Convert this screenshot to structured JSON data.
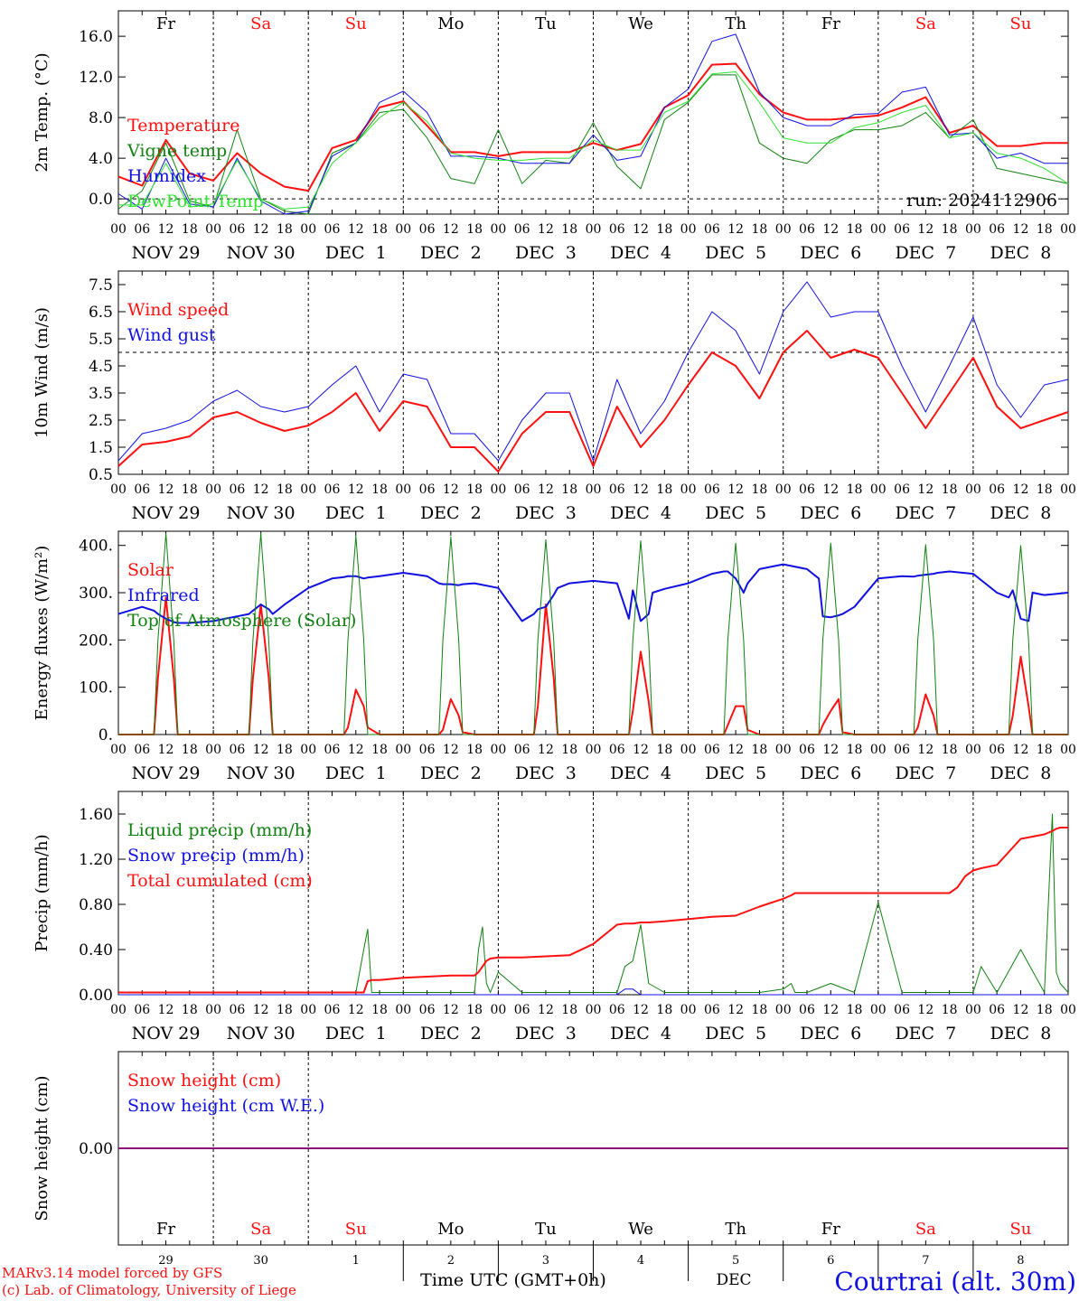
{
  "colors": {
    "red": "#ff1010",
    "blue": "#1010e0",
    "green": "#108010",
    "lightgreen": "#30e030",
    "black": "#000000"
  },
  "day_names": [
    "Fr",
    "Sa",
    "Su",
    "Mo",
    "Tu",
    "We",
    "Th",
    "Fr",
    "Sa",
    "Su"
  ],
  "weekend_flags": [
    false,
    true,
    true,
    false,
    false,
    false,
    false,
    false,
    true,
    true
  ],
  "hour_ticks": [
    "00",
    "06",
    "12",
    "18"
  ],
  "final_hour_tick": "00",
  "date_labels": [
    "NOV 29",
    "NOV 30",
    "DEC  1",
    "DEC  2",
    "DEC  3",
    "DEC  4",
    "DEC  5",
    "DEC  6",
    "DEC  7",
    "DEC  8"
  ],
  "bottom_day_numbers": [
    "29",
    "30",
    "1",
    "2",
    "3",
    "4",
    "5",
    "6",
    "7",
    "8"
  ],
  "bottom_month": "DEC",
  "x_axis_title": "Time UTC (GMT+0h)",
  "credits": [
    "MARv3.14 model forced by GFS",
    "(c) Lab. of Climatology, University of Liege"
  ],
  "location": "Courtrai (alt. 30m)",
  "run_label": "run: 2024112906",
  "chart_data": [
    {
      "type": "line",
      "ylabel": "2m Temp. (°C)",
      "ylim": [
        -1.5,
        18.5
      ],
      "yticks": [
        0.0,
        4.0,
        8.0,
        12.0,
        16.0
      ],
      "ytick_labels": [
        "0.0",
        "4.0",
        "8.0",
        "12.0",
        "16.0"
      ],
      "ref_line": 0,
      "x_hours": [
        0,
        6,
        12,
        18,
        24,
        30,
        36,
        42,
        48,
        54,
        60,
        66,
        72,
        78,
        84,
        90,
        96,
        102,
        108,
        114,
        120,
        126,
        132,
        138,
        144,
        150,
        156,
        162,
        168,
        174,
        180,
        186,
        192,
        198,
        204,
        210,
        216,
        222,
        228,
        234,
        240
      ],
      "series": [
        {
          "name": "Temperature",
          "color": "red",
          "width": 2,
          "values": [
            2.2,
            1.3,
            5.8,
            2.5,
            1.8,
            4.5,
            2.5,
            1.2,
            0.8,
            5.0,
            5.8,
            9.0,
            9.6,
            7.2,
            4.6,
            4.6,
            4.2,
            4.6,
            4.6,
            4.6,
            5.5,
            4.8,
            5.4,
            9.0,
            10.2,
            13.2,
            13.3,
            10.3,
            8.5,
            7.8,
            7.8,
            8.0,
            8.2,
            9.0,
            10.0,
            6.5,
            7.2,
            5.2,
            5.2,
            5.5,
            5.5
          ]
        },
        {
          "name": "Vigne temp",
          "color": "green",
          "width": 1,
          "values": [
            -1.0,
            0.8,
            5.5,
            -0.2,
            -0.8,
            6.8,
            0.0,
            -1.2,
            -1.5,
            4.5,
            5.5,
            8.5,
            8.8,
            6.0,
            2.0,
            1.5,
            6.8,
            1.5,
            3.8,
            3.5,
            7.5,
            3.2,
            1.0,
            7.8,
            9.5,
            12.2,
            12.2,
            5.5,
            4.0,
            3.5,
            5.8,
            6.8,
            6.8,
            7.2,
            8.5,
            6.0,
            7.8,
            3.0,
            2.5,
            2.0,
            1.5
          ]
        },
        {
          "name": "Humidex",
          "color": "blue",
          "width": 1,
          "values": [
            0.5,
            -1.0,
            4.0,
            -0.5,
            -0.8,
            4.0,
            -0.2,
            -1.5,
            -1.2,
            4.2,
            5.5,
            9.5,
            10.6,
            8.5,
            4.2,
            4.2,
            4.0,
            3.5,
            3.5,
            3.5,
            6.3,
            3.8,
            4.2,
            9.0,
            10.8,
            15.5,
            16.2,
            10.5,
            8.0,
            7.2,
            7.2,
            8.3,
            8.4,
            10.5,
            11.0,
            6.3,
            6.5,
            4.0,
            4.5,
            3.5,
            3.5
          ]
        },
        {
          "name": "DewPoint Temp",
          "color": "lightgreen",
          "width": 1,
          "values": [
            -0.6,
            -0.6,
            3.5,
            -0.8,
            -0.5,
            3.8,
            0.0,
            -1.0,
            -0.8,
            3.5,
            5.5,
            8.0,
            9.5,
            7.6,
            4.5,
            4.0,
            3.8,
            3.8,
            4.0,
            4.0,
            5.8,
            4.8,
            4.8,
            8.5,
            9.6,
            12.3,
            12.5,
            9.5,
            6.0,
            5.5,
            5.5,
            7.0,
            7.5,
            8.5,
            9.2,
            6.0,
            6.5,
            4.5,
            4.0,
            3.0,
            1.5
          ]
        }
      ],
      "legend": [
        "Temperature",
        "Vigne temp",
        "Humidex",
        "DewPoint Temp"
      ]
    },
    {
      "type": "line",
      "ylabel": "10m Wind (m/s)",
      "ylim": [
        0.5,
        8.0
      ],
      "yticks": [
        0.5,
        1.5,
        2.5,
        3.5,
        4.5,
        5.5,
        6.5,
        7.5
      ],
      "ytick_labels": [
        "0.5",
        "1.5",
        "2.5",
        "3.5",
        "4.5",
        "5.5",
        "6.5",
        "7.5"
      ],
      "ref_line": 5,
      "x_hours": [
        0,
        6,
        12,
        18,
        24,
        30,
        36,
        42,
        48,
        54,
        60,
        66,
        72,
        78,
        84,
        90,
        96,
        102,
        108,
        114,
        120,
        126,
        132,
        138,
        144,
        150,
        156,
        162,
        168,
        174,
        180,
        186,
        192,
        198,
        204,
        210,
        216,
        222,
        228,
        234,
        240
      ],
      "series": [
        {
          "name": "Wind speed",
          "color": "red",
          "width": 2,
          "values": [
            0.8,
            1.6,
            1.7,
            1.9,
            2.6,
            2.8,
            2.4,
            2.1,
            2.3,
            2.8,
            3.5,
            2.1,
            3.2,
            3.0,
            1.5,
            1.5,
            0.6,
            2.0,
            2.8,
            2.8,
            0.8,
            3.0,
            1.5,
            2.5,
            3.8,
            5.0,
            4.5,
            3.3,
            5.0,
            5.8,
            4.8,
            5.1,
            4.8,
            3.5,
            2.2,
            3.5,
            4.8,
            3.0,
            2.2,
            2.5,
            2.8
          ]
        },
        {
          "name": "Wind gust",
          "color": "blue",
          "width": 1,
          "values": [
            1.0,
            2.0,
            2.2,
            2.5,
            3.2,
            3.6,
            3.0,
            2.8,
            3.0,
            3.8,
            4.5,
            2.8,
            4.2,
            4.0,
            2.0,
            2.0,
            1.0,
            2.5,
            3.5,
            3.5,
            1.0,
            4.0,
            2.0,
            3.2,
            5.0,
            6.5,
            5.8,
            4.2,
            6.5,
            7.6,
            6.3,
            6.5,
            6.5,
            4.5,
            2.8,
            4.5,
            6.3,
            3.8,
            2.6,
            3.8,
            4.0
          ]
        }
      ],
      "legend": [
        "Wind speed",
        "Wind gust"
      ]
    },
    {
      "type": "line",
      "ylabel": "Energy fluxes (W/m²)",
      "ylim": [
        0,
        430
      ],
      "yticks": [
        0,
        100,
        200,
        300,
        400
      ],
      "ytick_labels": [
        "0.",
        "100.",
        "200.",
        "300.",
        "400."
      ],
      "x_hours": [
        0,
        6,
        9,
        10,
        12,
        14,
        15,
        18,
        24,
        30,
        33,
        34,
        36,
        38,
        39,
        42,
        48,
        54,
        57,
        58,
        60,
        62,
        63,
        66,
        72,
        78,
        81,
        82,
        84,
        86,
        87,
        90,
        96,
        102,
        105,
        106,
        108,
        110,
        111,
        114,
        120,
        126,
        129,
        130,
        132,
        134,
        135,
        138,
        144,
        150,
        153,
        154,
        156,
        158,
        159,
        162,
        168,
        174,
        177,
        178,
        180,
        182,
        183,
        186,
        192,
        198,
        201,
        202,
        204,
        206,
        207,
        210,
        216,
        222,
        225,
        226,
        228,
        230,
        231,
        234,
        240
      ],
      "series": [
        {
          "name": "Solar",
          "color": "red",
          "width": 2,
          "values": [
            0,
            0,
            0,
            120,
            290,
            120,
            0,
            0,
            0,
            0,
            0,
            120,
            275,
            120,
            0,
            0,
            0,
            0,
            0,
            15,
            95,
            60,
            15,
            0,
            0,
            0,
            0,
            10,
            75,
            40,
            5,
            0,
            0,
            0,
            0,
            60,
            275,
            120,
            0,
            0,
            0,
            0,
            0,
            50,
            175,
            70,
            0,
            0,
            0,
            0,
            0,
            20,
            60,
            60,
            10,
            0,
            0,
            0,
            0,
            20,
            50,
            75,
            5,
            0,
            0,
            0,
            0,
            15,
            85,
            40,
            0,
            0,
            0,
            0,
            0,
            40,
            165,
            60,
            0,
            0,
            0
          ]
        },
        {
          "name": "Infrared",
          "color": "blue",
          "width": 2,
          "values": [
            255,
            270,
            262,
            255,
            245,
            238,
            236,
            236,
            240,
            250,
            255,
            262,
            275,
            265,
            255,
            275,
            310,
            330,
            333,
            335,
            335,
            330,
            332,
            335,
            342,
            335,
            320,
            318,
            318,
            316,
            318,
            320,
            310,
            240,
            255,
            265,
            270,
            295,
            310,
            320,
            325,
            320,
            245,
            305,
            240,
            255,
            300,
            308,
            320,
            340,
            345,
            345,
            330,
            300,
            320,
            350,
            360,
            350,
            330,
            250,
            248,
            252,
            255,
            270,
            330,
            335,
            334,
            336,
            338,
            340,
            342,
            345,
            340,
            300,
            290,
            305,
            245,
            240,
            300,
            295,
            300
          ]
        },
        {
          "name": "Top of Atmosphere (Solar)",
          "color": "green",
          "width": 1,
          "values": [
            0,
            0,
            0,
            200,
            425,
            200,
            0,
            0,
            0,
            0,
            0,
            200,
            425,
            200,
            0,
            0,
            0,
            0,
            0,
            200,
            420,
            200,
            0,
            0,
            0,
            0,
            0,
            200,
            418,
            200,
            0,
            0,
            0,
            0,
            0,
            200,
            412,
            200,
            0,
            0,
            0,
            0,
            0,
            200,
            410,
            200,
            0,
            0,
            0,
            0,
            0,
            200,
            405,
            200,
            0,
            0,
            0,
            0,
            0,
            200,
            405,
            200,
            0,
            0,
            0,
            0,
            0,
            200,
            402,
            200,
            0,
            0,
            0,
            0,
            0,
            200,
            400,
            200,
            0,
            0,
            0
          ]
        }
      ],
      "legend": [
        "Solar",
        "Infrared",
        "Top of Atmosphere (Solar)"
      ]
    },
    {
      "type": "line",
      "ylabel": "Precip (mm/h)",
      "ylim": [
        0.0,
        1.8
      ],
      "yticks": [
        0.0,
        0.4,
        0.8,
        1.2,
        1.6
      ],
      "ytick_labels": [
        "0.00",
        "0.40",
        "0.80",
        "1.20",
        "1.60"
      ],
      "x_hours": [
        0,
        6,
        12,
        18,
        24,
        30,
        36,
        42,
        48,
        54,
        60,
        62,
        63,
        64,
        66,
        72,
        78,
        84,
        90,
        91,
        92,
        93,
        94,
        96,
        102,
        108,
        114,
        120,
        126,
        128,
        130,
        132,
        134,
        138,
        144,
        150,
        156,
        162,
        168,
        170,
        171,
        172,
        174,
        180,
        186,
        192,
        198,
        204,
        210,
        212,
        214,
        216,
        218,
        222,
        228,
        234,
        236,
        237,
        238,
        240
      ],
      "series": [
        {
          "name": "Liquid precip (mm/h)",
          "color": "green",
          "width": 1,
          "values": [
            0.02,
            0.02,
            0.02,
            0.02,
            0.02,
            0.02,
            0.02,
            0.02,
            0.02,
            0.02,
            0.02,
            0.4,
            0.58,
            0.02,
            0.02,
            0.02,
            0.02,
            0.02,
            0.02,
            0.4,
            0.6,
            0.1,
            0.02,
            0.2,
            0.02,
            0.02,
            0.02,
            0.02,
            0.02,
            0.25,
            0.3,
            0.62,
            0.1,
            0.02,
            0.02,
            0.02,
            0.02,
            0.02,
            0.05,
            0.1,
            0.02,
            0.02,
            0.02,
            0.1,
            0.02,
            0.82,
            0.02,
            0.02,
            0.02,
            0.02,
            0.02,
            0.02,
            0.25,
            0.02,
            0.4,
            0.02,
            1.6,
            0.2,
            0.1,
            0.02
          ]
        },
        {
          "name": "Total cumulated (cm)",
          "color": "red",
          "width": 2,
          "values": [
            0.02,
            0.02,
            0.02,
            0.02,
            0.02,
            0.02,
            0.02,
            0.02,
            0.02,
            0.02,
            0.02,
            0.02,
            0.12,
            0.13,
            0.13,
            0.15,
            0.16,
            0.17,
            0.17,
            0.2,
            0.25,
            0.3,
            0.32,
            0.33,
            0.33,
            0.34,
            0.35,
            0.45,
            0.62,
            0.63,
            0.63,
            0.64,
            0.64,
            0.65,
            0.67,
            0.69,
            0.7,
            0.78,
            0.85,
            0.88,
            0.9,
            0.9,
            0.9,
            0.9,
            0.9,
            0.9,
            0.9,
            0.9,
            0.9,
            0.95,
            1.05,
            1.1,
            1.12,
            1.15,
            1.38,
            1.42,
            1.45,
            1.47,
            1.48,
            1.48
          ]
        },
        {
          "name": "Snow precip (mm/h)",
          "color": "blue",
          "width": 1,
          "values": [
            0.0,
            0.0,
            0.0,
            0.0,
            0.0,
            0.0,
            0.0,
            0.0,
            0.0,
            0.0,
            0.0,
            0.0,
            0.0,
            0.0,
            0.0,
            0.0,
            0.0,
            0.0,
            0.0,
            0.0,
            0.0,
            0.0,
            0.0,
            0.0,
            0.0,
            0.0,
            0.0,
            0.0,
            0.0,
            0.05,
            0.05,
            0.0,
            0.0,
            0.0,
            0.0,
            0.0,
            0.0,
            0.0,
            0.0,
            0.0,
            0.0,
            0.0,
            0.0,
            0.0,
            0.0,
            0.0,
            0.0,
            0.0,
            0.0,
            0.0,
            0.0,
            0.0,
            0.0,
            0.0,
            0.0,
            0.0,
            0.0,
            0.0,
            0.0,
            0.0
          ]
        }
      ],
      "legend": [
        "Liquid precip (mm/h)",
        "Snow precip (mm/h)",
        "Total cumulated (cm)"
      ]
    },
    {
      "type": "line",
      "ylabel": "Snow height (cm)",
      "ylim": [
        -1,
        1
      ],
      "yticks": [
        0.0
      ],
      "ytick_labels": [
        "0.00"
      ],
      "x_hours": [
        0,
        240
      ],
      "series": [
        {
          "name": "Snow height (cm)",
          "color": "red",
          "width": 2,
          "values": [
            0.0,
            0.0
          ]
        },
        {
          "name": "Snow height (cm W.E.)",
          "color": "blue",
          "width": 1,
          "values": [
            0.0,
            0.0
          ]
        }
      ],
      "legend": [
        "Snow height (cm)",
        "Snow height (cm W.E.)"
      ]
    }
  ]
}
